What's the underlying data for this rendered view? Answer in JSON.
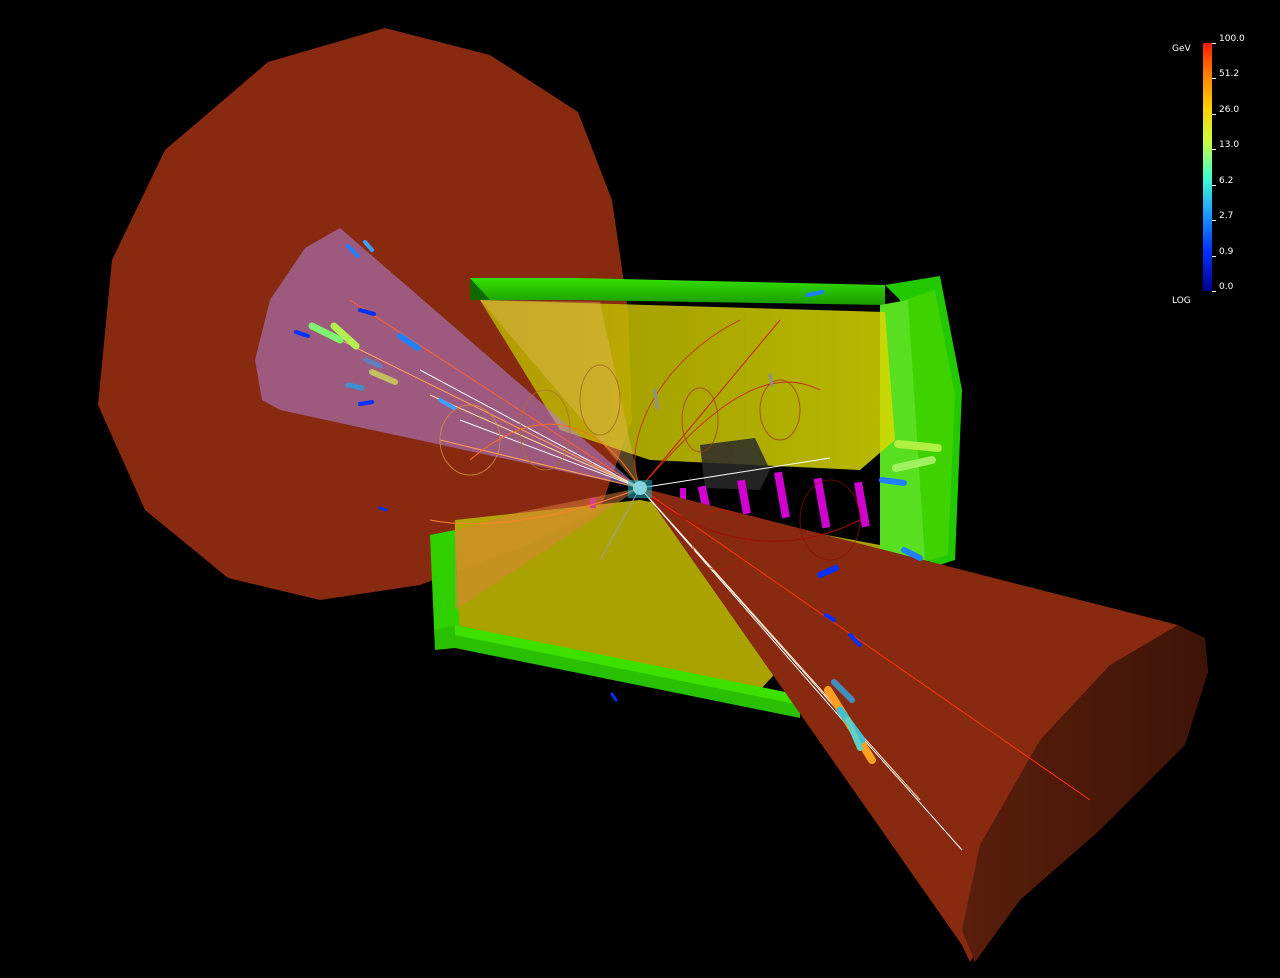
{
  "legend": {
    "unit": "GeV",
    "scale_mode": "LOG",
    "ticks": [
      "100.0",
      "51.2",
      "26.0",
      "13.0",
      "6.2",
      "2.7",
      "0.9",
      "0.0"
    ]
  },
  "colors": {
    "background": "#000000",
    "calorimeter_cone": "#8a2a10",
    "detector_frame": "#22cc00",
    "barrel_volume": "#d8d000",
    "jet_cone": "#a870c0",
    "tracks": "#ff5010"
  }
}
